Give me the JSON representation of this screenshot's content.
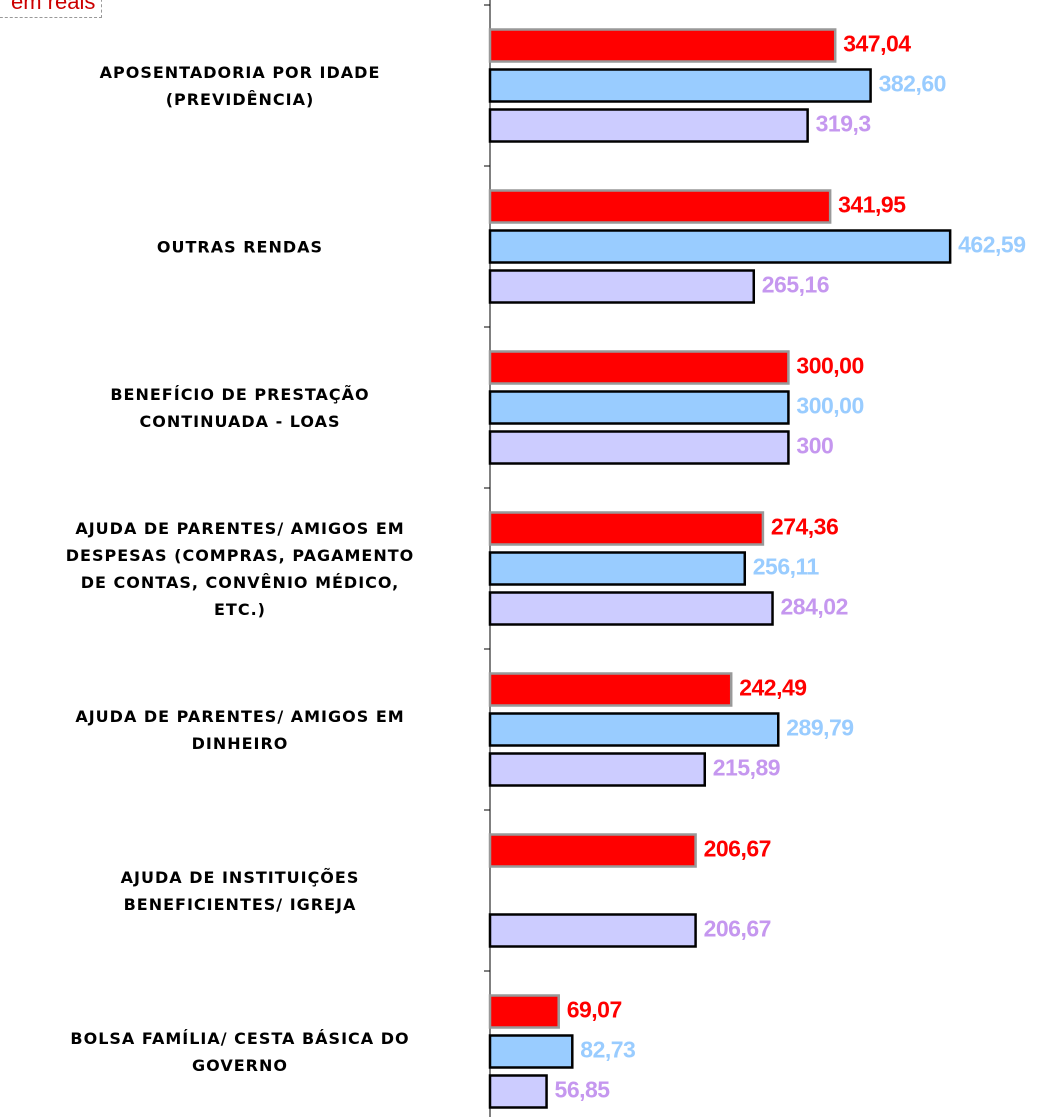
{
  "chart_data": {
    "type": "barh",
    "annotation": "em reais",
    "categories": [
      "APOSENTADORIA POR IDADE\n(PREVIDÊNCIA)",
      "OUTRAS RENDAS",
      "BENEFÍCIO DE PRESTAÇÃO\nCONTINUADA - LOAS",
      "AJUDA DE PARENTES/ AMIGOS EM\nDESPESAS (COMPRAS, PAGAMENTO\nDE CONTAS, CONVÊNIO MÉDICO,\nETC.)",
      "AJUDA DE PARENTES/ AMIGOS EM\nDINHEIRO",
      "AJUDA DE INSTITUIÇÕES\nBENEFICIENTES/ IGREJA",
      "BOLSA FAMÍLIA/ CESTA BÁSICA DO\nGOVERNO"
    ],
    "series": [
      {
        "color": "#ff0000",
        "edge": "#999999",
        "label_color": "#ff0000",
        "values": [
          347.04,
          341.95,
          300.0,
          274.36,
          242.49,
          206.67,
          69.07
        ],
        "value_labels": [
          "347,04",
          "341,95",
          "300,00",
          "274,36",
          "242,49",
          "206,67",
          "69,07"
        ]
      },
      {
        "color": "#99ccff",
        "edge": "#000000",
        "label_color": "#99ccff",
        "values": [
          382.6,
          462.59,
          300.0,
          256.11,
          289.79,
          null,
          82.73
        ],
        "value_labels": [
          "382,60",
          "462,59",
          "300,00",
          "256,11",
          "289,79",
          null,
          "82,73"
        ]
      },
      {
        "color": "#ccccff",
        "edge": "#000000",
        "label_color": "#c597ef",
        "values": [
          319.3,
          265.16,
          300,
          284.02,
          215.89,
          206.67,
          56.85
        ],
        "value_labels": [
          "319,3",
          "265,16",
          "300",
          "284,02",
          "215,89",
          "206,67",
          "56,85"
        ]
      }
    ],
    "xlim": [
      0,
      570
    ]
  }
}
